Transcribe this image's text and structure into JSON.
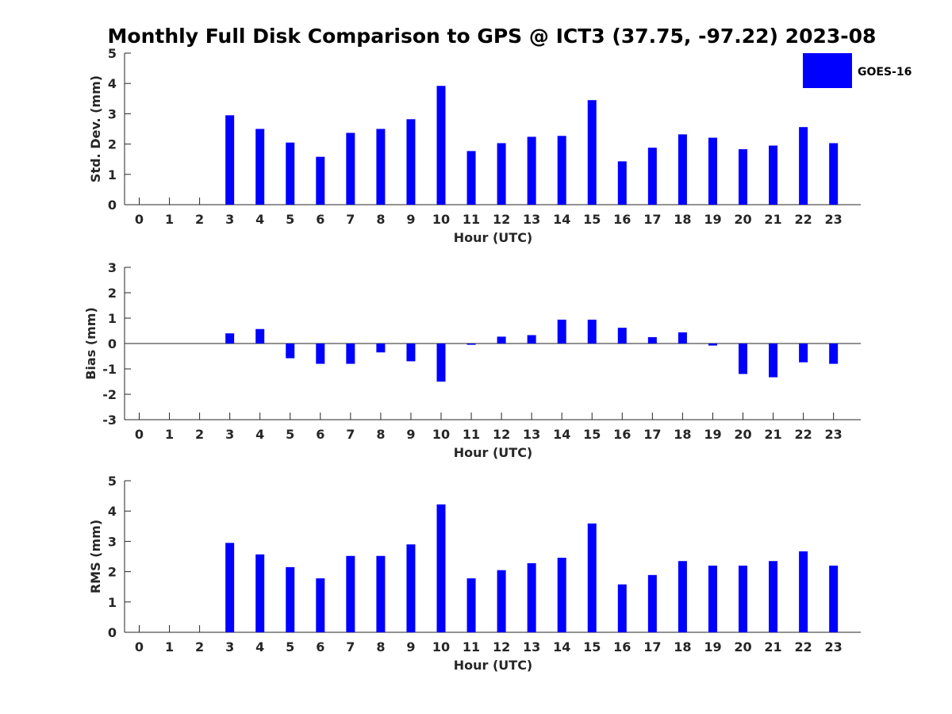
{
  "chart_data": [
    {
      "type": "bar",
      "title": "Monthly Full Disk Comparison to GPS @ ICT3 (37.75, -97.22) 2023-08",
      "xlabel": "Hour (UTC)",
      "ylabel": "Std. Dev. (mm)",
      "ylim": [
        0,
        5
      ],
      "yticks": [
        "0",
        "1",
        "2",
        "3",
        "4",
        "5"
      ],
      "categories": [
        "0",
        "1",
        "2",
        "3",
        "4",
        "5",
        "6",
        "7",
        "8",
        "9",
        "10",
        "11",
        "12",
        "13",
        "14",
        "15",
        "16",
        "17",
        "18",
        "19",
        "20",
        "21",
        "22",
        "23"
      ],
      "series": [
        {
          "name": "GOES-16",
          "color": "#0000ff",
          "values": [
            null,
            null,
            null,
            2.95,
            2.5,
            2.05,
            1.58,
            2.37,
            2.5,
            2.82,
            3.92,
            1.77,
            2.03,
            2.24,
            2.27,
            3.45,
            1.43,
            1.88,
            2.32,
            2.21,
            1.83,
            1.95,
            2.56,
            2.03
          ]
        }
      ],
      "legend": {
        "position": "top-right",
        "entries": [
          "GOES-16"
        ]
      },
      "grid": false
    },
    {
      "type": "bar",
      "title": "",
      "xlabel": "Hour (UTC)",
      "ylabel": "Bias (mm)",
      "ylim": [
        -3,
        3
      ],
      "yticks": [
        "-3",
        "-2",
        "-1",
        "0",
        "1",
        "2",
        "3"
      ],
      "categories": [
        "0",
        "1",
        "2",
        "3",
        "4",
        "5",
        "6",
        "7",
        "8",
        "9",
        "10",
        "11",
        "12",
        "13",
        "14",
        "15",
        "16",
        "17",
        "18",
        "19",
        "20",
        "21",
        "22",
        "23"
      ],
      "series": [
        {
          "name": "GOES-16",
          "color": "#0000ff",
          "values": [
            null,
            null,
            null,
            0.4,
            0.57,
            -0.58,
            -0.8,
            -0.8,
            -0.35,
            -0.7,
            -1.5,
            -0.05,
            0.27,
            0.33,
            0.94,
            0.94,
            0.62,
            0.25,
            0.44,
            -0.08,
            -1.2,
            -1.33,
            -0.74,
            -0.8
          ]
        }
      ],
      "grid": false
    },
    {
      "type": "bar",
      "title": "",
      "xlabel": "Hour (UTC)",
      "ylabel": "RMS (mm)",
      "ylim": [
        0,
        5
      ],
      "yticks": [
        "0",
        "1",
        "2",
        "3",
        "4",
        "5"
      ],
      "categories": [
        "0",
        "1",
        "2",
        "3",
        "4",
        "5",
        "6",
        "7",
        "8",
        "9",
        "10",
        "11",
        "12",
        "13",
        "14",
        "15",
        "16",
        "17",
        "18",
        "19",
        "20",
        "21",
        "22",
        "23"
      ],
      "series": [
        {
          "name": "GOES-16",
          "color": "#0000ff",
          "values": [
            null,
            null,
            null,
            2.95,
            2.57,
            2.15,
            1.78,
            2.52,
            2.52,
            2.9,
            4.22,
            1.78,
            2.05,
            2.28,
            2.46,
            3.59,
            1.58,
            1.89,
            2.35,
            2.2,
            2.2,
            2.35,
            2.67,
            2.2
          ]
        }
      ],
      "grid": false
    }
  ]
}
